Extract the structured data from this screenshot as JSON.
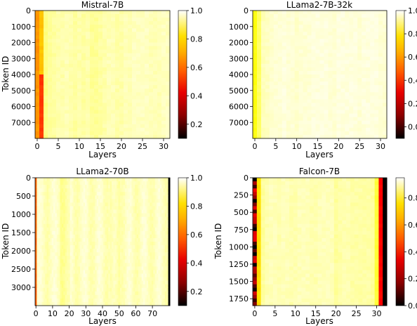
{
  "colormap": "hot",
  "charts": [
    {
      "title": "Mistral-7B",
      "xlabel": "Layers",
      "ylabel": "Token ID",
      "x_ticks": [
        0,
        5,
        10,
        15,
        20,
        25,
        30
      ],
      "y_ticks": [
        0,
        1000,
        2000,
        3000,
        4000,
        5000,
        6000,
        7000
      ],
      "colorbar_ticks": [
        "0.2",
        "0.4",
        "0.6",
        "0.8",
        "1.0"
      ]
    },
    {
      "title": "LLama2-7B-32k",
      "xlabel": "Layers",
      "ylabel": "",
      "x_ticks": [
        0,
        5,
        10,
        15,
        20,
        25,
        30
      ],
      "y_ticks": [
        0,
        1000,
        2000,
        3000,
        4000,
        5000,
        6000,
        7000
      ],
      "colorbar_ticks": [
        "0.0",
        "0.2",
        "0.4",
        "0.6",
        "0.8",
        "1.0"
      ]
    },
    {
      "title": "LLama2-70B",
      "xlabel": "Layers",
      "ylabel": "Token ID",
      "x_ticks": [
        0,
        10,
        20,
        30,
        40,
        50,
        60,
        70
      ],
      "y_ticks": [
        0,
        500,
        1000,
        1500,
        2000,
        2500,
        3000
      ],
      "colorbar_ticks": [
        "0.2",
        "0.4",
        "0.6",
        "0.8",
        "1.0"
      ]
    },
    {
      "title": "Falcon-7B",
      "xlabel": "Layers",
      "ylabel": "Token ID",
      "x_ticks": [
        0,
        5,
        10,
        15,
        20,
        25,
        30
      ],
      "y_ticks": [
        0,
        250,
        500,
        750,
        1000,
        1250,
        1500,
        1750
      ],
      "colorbar_ticks": [
        "0.0",
        "0.2",
        "0.4",
        "0.6",
        "0.8"
      ]
    }
  ],
  "chart_data": [
    {
      "type": "heatmap",
      "title": "Mistral-7B",
      "xlabel": "Layers",
      "ylabel": "Token ID",
      "xlim": [
        0,
        31
      ],
      "ylim": [
        0,
        8000
      ],
      "color_range": [
        0.1,
        1.0
      ],
      "layer_profile": [
        0.62,
        0.68,
        0.88,
        0.9,
        0.91,
        0.92,
        0.92,
        0.93,
        0.92,
        0.91,
        0.92,
        0.91,
        0.92,
        0.9,
        0.9,
        0.91,
        0.92,
        0.93,
        0.93,
        0.92,
        0.92,
        0.93,
        0.93,
        0.94,
        0.94,
        0.94,
        0.94,
        0.93,
        0.93,
        0.93,
        0.94,
        0.94
      ],
      "token_segment_note": [
        {
          "token_range": [
            0,
            4100
          ],
          "layer_values": {
            "0": 0.62,
            "1": 0.66
          }
        },
        {
          "token_range": [
            4100,
            8000
          ],
          "layer_values": {
            "0": 0.62,
            "1": 0.5
          }
        }
      ]
    },
    {
      "type": "heatmap",
      "title": "LLama2-7B-32k",
      "xlabel": "Layers",
      "ylabel": "",
      "xlim": [
        0,
        31
      ],
      "ylim": [
        0,
        8000
      ],
      "color_range": [
        -0.1,
        1.0
      ],
      "layer_profile": [
        0.72,
        0.82,
        0.92,
        0.93,
        0.94,
        0.95,
        0.95,
        0.96,
        0.95,
        0.95,
        0.94,
        0.95,
        0.95,
        0.95,
        0.96,
        0.96,
        0.96,
        0.96,
        0.95,
        0.95,
        0.96,
        0.96,
        0.96,
        0.96,
        0.96,
        0.95,
        0.96,
        0.96,
        0.96,
        0.96,
        0.95,
        0.95
      ]
    },
    {
      "type": "heatmap",
      "title": "LLama2-70B",
      "xlabel": "Layers",
      "ylabel": "Token ID",
      "xlim": [
        0,
        80
      ],
      "ylim": [
        0,
        3500
      ],
      "color_range": [
        0.1,
        1.0
      ],
      "layer_profile_note": "layer 0 near 0.55 (orange), remaining layers 0.9-0.97 with slightly darker bands near layers 15-20 and 45-50"
    },
    {
      "type": "heatmap",
      "title": "Falcon-7B",
      "xlabel": "Layers",
      "ylabel": "Token ID",
      "xlim": [
        0,
        32
      ],
      "ylim": [
        0,
        1850
      ],
      "color_range": [
        0.0,
        0.95
      ],
      "layer_profile": [
        0.08,
        0.65,
        0.85,
        0.87,
        0.88,
        0.88,
        0.87,
        0.88,
        0.88,
        0.87,
        0.87,
        0.88,
        0.88,
        0.88,
        0.87,
        0.87,
        0.88,
        0.88,
        0.88,
        0.88,
        0.85,
        0.86,
        0.87,
        0.87,
        0.86,
        0.86,
        0.86,
        0.86,
        0.86,
        0.85,
        0.75,
        0.35
      ]
    }
  ]
}
